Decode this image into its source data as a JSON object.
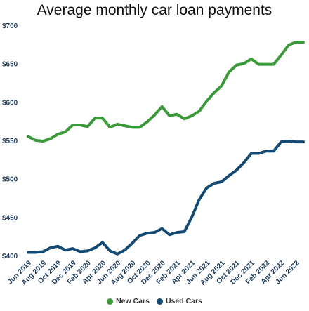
{
  "chart_data": {
    "type": "line",
    "title": "Average monthly car loan payments",
    "xlabel": "",
    "ylabel": "",
    "ylim": [
      400,
      700
    ],
    "yticks": [
      "$400",
      "$450",
      "$500",
      "$550",
      "$600",
      "$650",
      "$700"
    ],
    "ytick_values": [
      400,
      450,
      500,
      550,
      600,
      650,
      700
    ],
    "categories": [
      "Jun 2019",
      "Jul 2019",
      "Aug 2019",
      "Sep 2019",
      "Oct 2019",
      "Nov 2019",
      "Dec 2019",
      "Jan 2020",
      "Feb 2020",
      "Mar 2020",
      "Apr 2020",
      "May 2020",
      "Jun 2020",
      "Jul 2020",
      "Aug 2020",
      "Sep 2020",
      "Oct 2020",
      "Nov 2020",
      "Dec 2020",
      "Jan 2021",
      "Feb 2021",
      "Mar 2021",
      "Apr 2021",
      "May 2021",
      "Jun 2021",
      "Jul 2021",
      "Aug 2021",
      "Sep 2021",
      "Oct 2021",
      "Nov 2021",
      "Dec 2021",
      "Jan 2022",
      "Feb 2022",
      "Mar 2022",
      "Apr 2022",
      "May 2022",
      "Jun 2022",
      "Jul 2022"
    ],
    "xtick_labels": [
      "Jun 2019",
      "Aug 2019",
      "Oct 2019",
      "Dec 2019",
      "Feb 2020",
      "Apr 2020",
      "Jun 2020",
      "Aug 2020",
      "Oct 2020",
      "Dec 2020",
      "Feb 2021",
      "Apr 2021",
      "Jun 2021",
      "Aug 2021",
      "Oct 2021",
      "Dec 2021",
      "Feb 2022",
      "Apr 2022",
      "Jun 2022"
    ],
    "xtick_indices": [
      0,
      2,
      4,
      6,
      8,
      10,
      12,
      14,
      16,
      18,
      20,
      22,
      24,
      26,
      28,
      30,
      32,
      34,
      36
    ],
    "series": [
      {
        "name": "New Cars",
        "color": "#3a9a3a",
        "values": [
          556,
          551,
          550,
          553,
          559,
          562,
          571,
          571,
          569,
          580,
          580,
          568,
          572,
          570,
          568,
          568,
          575,
          584,
          595,
          583,
          585,
          579,
          583,
          589,
          602,
          613,
          622,
          640,
          649,
          651,
          657,
          650,
          650,
          650,
          662,
          675,
          679,
          679
        ]
      },
      {
        "name": "Used Cars",
        "color": "#144a72",
        "values": [
          405,
          405,
          406,
          411,
          413,
          408,
          410,
          406,
          407,
          411,
          418,
          407,
          403,
          408,
          417,
          427,
          430,
          431,
          436,
          428,
          431,
          432,
          451,
          474,
          489,
          495,
          497,
          505,
          512,
          522,
          534,
          534,
          537,
          537,
          549,
          550,
          549,
          549
        ]
      }
    ],
    "grid": false,
    "legend": "bottom-center"
  }
}
